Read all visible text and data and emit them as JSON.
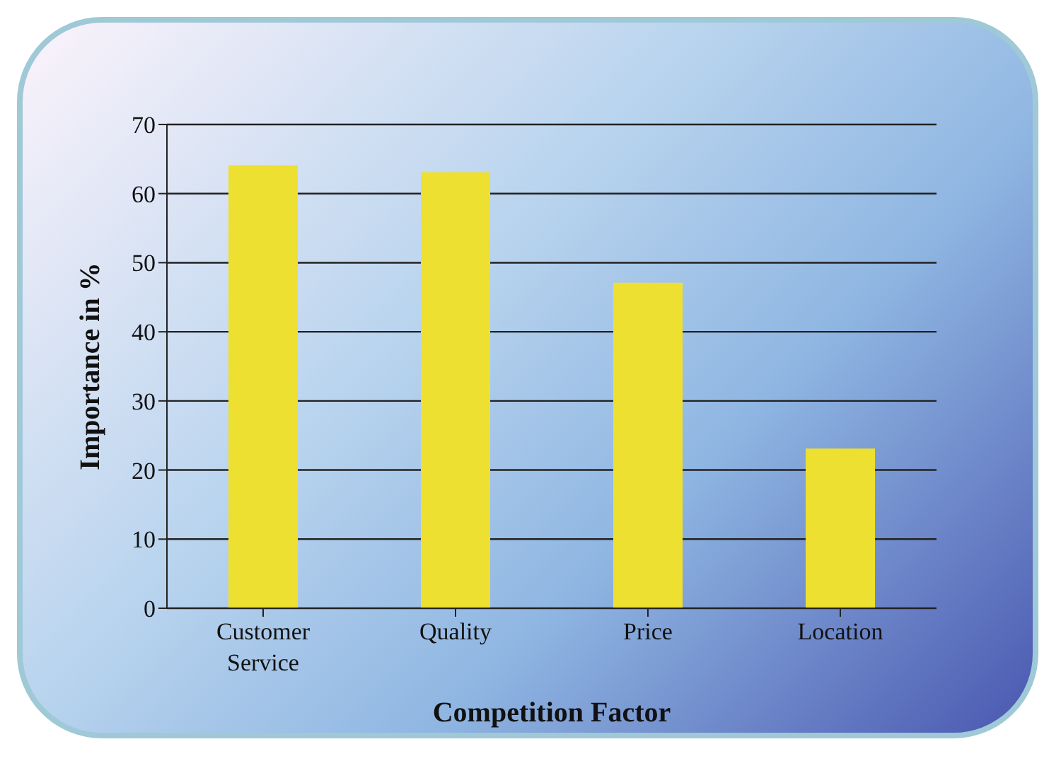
{
  "chart_data": {
    "type": "bar",
    "xlabel": "Competition Factor",
    "ylabel": "Importance in %",
    "categories": [
      "Customer Service",
      "Quality",
      "Price",
      "Location"
    ],
    "values": [
      64,
      63,
      47,
      23
    ],
    "color": "#eee030",
    "ylim": [
      0,
      70
    ],
    "yticks": [
      0,
      10,
      20,
      30,
      40,
      50,
      60,
      70
    ],
    "grid": "y"
  }
}
